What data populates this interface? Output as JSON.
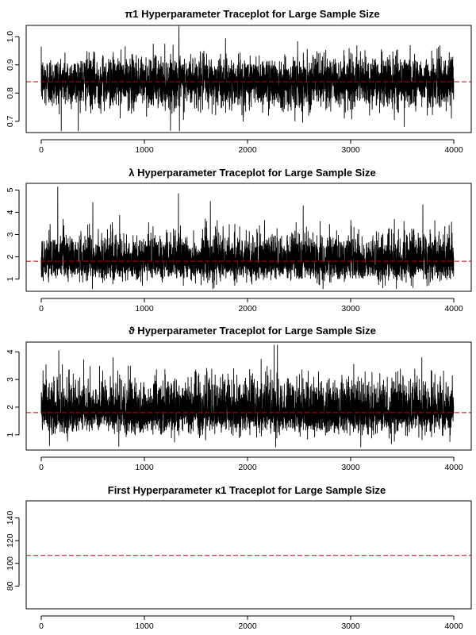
{
  "chart_data": [
    {
      "type": "line",
      "title": "π1 Hyperparameter Traceplot for Large Sample Size",
      "xlabel": "",
      "ylabel": "",
      "xlim": [
        0,
        4000
      ],
      "ylim": [
        0.66,
        1.04
      ],
      "x_ticks": [
        0,
        1000,
        2000,
        3000,
        4000
      ],
      "y_ticks": [
        0.7,
        0.8,
        0.9,
        1.0
      ],
      "y_tick_labels": [
        "0.7",
        "0.8",
        "0.9",
        "1.0"
      ],
      "reference_line": 0.84,
      "trace": {
        "n": 4000,
        "center": 0.84,
        "spread": 0.045,
        "min": 0.665,
        "max": 1.04,
        "spikes": [
          [
            1335,
            1.04
          ],
          [
            1340,
            0.665
          ],
          [
            3520,
            0.68
          ],
          [
            2460,
            0.7
          ]
        ]
      },
      "grid": false
    },
    {
      "type": "line",
      "title": "λ Hyperparameter Traceplot for Large Sample Size",
      "xlabel": "",
      "ylabel": "",
      "xlim": [
        0,
        4000
      ],
      "ylim": [
        0.45,
        5.3
      ],
      "x_ticks": [
        0,
        1000,
        2000,
        3000,
        4000
      ],
      "y_ticks": [
        1,
        2,
        3,
        4,
        5
      ],
      "y_tick_labels": [
        "1",
        "2",
        "3",
        "4",
        "5"
      ],
      "reference_line": 1.8,
      "trace": {
        "n": 4000,
        "center": 1.75,
        "spread": 0.48,
        "min": 0.55,
        "max": 5.15,
        "skew": true,
        "spikes": [
          [
            160,
            5.15
          ],
          [
            500,
            4.45
          ],
          [
            1330,
            4.85
          ],
          [
            1640,
            4.5
          ],
          [
            2540,
            4.3
          ],
          [
            3700,
            4.35
          ],
          [
            3605,
            0.6
          ]
        ]
      },
      "grid": false
    },
    {
      "type": "line",
      "title": "ϑ Hyperparameter Traceplot for Large Sample Size",
      "xlabel": "",
      "ylabel": "",
      "xlim": [
        0,
        4000
      ],
      "ylim": [
        0.45,
        4.35
      ],
      "x_ticks": [
        0,
        1000,
        2000,
        3000,
        4000
      ],
      "y_ticks": [
        1,
        2,
        3,
        4
      ],
      "y_tick_labels": [
        "1",
        "2",
        "3",
        "4"
      ],
      "reference_line": 1.8,
      "trace": {
        "n": 4000,
        "center": 1.8,
        "spread": 0.45,
        "min": 0.55,
        "max": 4.25,
        "skew": true,
        "spikes": [
          [
            170,
            4.05
          ],
          [
            2290,
            4.25
          ],
          [
            3690,
            3.8
          ],
          [
            80,
            0.6
          ]
        ]
      },
      "grid": false
    },
    {
      "type": "line",
      "title": "First Hyperparameter κ1 Traceplot for Large Sample Size",
      "xlabel": "",
      "ylabel": "",
      "xlim": [
        0,
        4000
      ],
      "ylim": [
        60,
        155
      ],
      "x_ticks": [
        0,
        1000,
        2000,
        3000,
        4000
      ],
      "y_ticks": [
        80,
        100,
        120,
        140
      ],
      "y_tick_labels": [
        "80",
        "100",
        "120",
        "140"
      ],
      "reference_line": 107,
      "trace": null,
      "grid": false
    }
  ],
  "colors": {
    "trace": "#000000",
    "reference_line": "#cc0000",
    "background": "#ffffff"
  }
}
